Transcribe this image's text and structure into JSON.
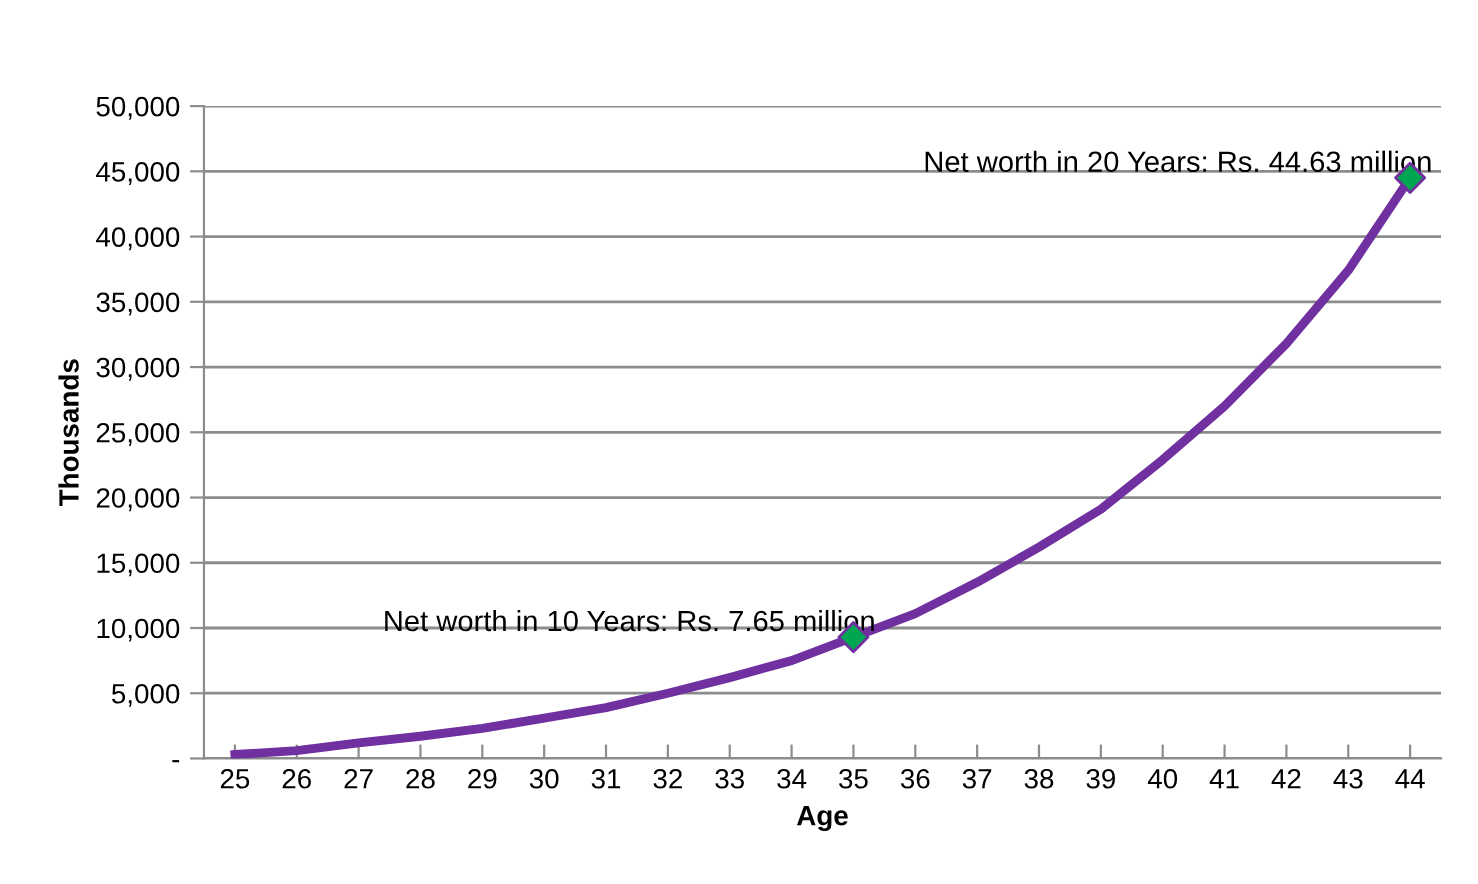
{
  "chart_data": {
    "type": "line",
    "xlabel": "Age",
    "ylabel": "Thousands",
    "categories": [
      "25",
      "26",
      "27",
      "28",
      "29",
      "30",
      "31",
      "32",
      "33",
      "34",
      "35",
      "36",
      "37",
      "38",
      "39",
      "40",
      "41",
      "42",
      "43",
      "44"
    ],
    "series": [
      {
        "color": "#7030a0",
        "marker": "none",
        "values": [
          300,
          600,
          1200,
          1700,
          2300,
          3100,
          3900,
          5000,
          6200,
          7500,
          9300,
          11100,
          13500,
          16200,
          19100,
          22900,
          27000,
          31800,
          37400,
          44500
        ]
      },
      {
        "type": "scatter",
        "color": "#00a651",
        "marker": "diamond",
        "x": [
          "35",
          "44"
        ],
        "values": [
          9300,
          44500
        ]
      }
    ],
    "ylim": [
      0,
      50000
    ],
    "yticks": [
      {
        "value": 0,
        "label": "-"
      },
      {
        "value": 5000,
        "label": "5,000"
      },
      {
        "value": 10000,
        "label": "10,000"
      },
      {
        "value": 15000,
        "label": "15,000"
      },
      {
        "value": 20000,
        "label": "20,000"
      },
      {
        "value": 25000,
        "label": "25,000"
      },
      {
        "value": 30000,
        "label": "30,000"
      },
      {
        "value": 35000,
        "label": "35,000"
      },
      {
        "value": 40000,
        "label": "40,000"
      },
      {
        "value": 45000,
        "label": "45,000"
      },
      {
        "value": 50000,
        "label": "50,000"
      }
    ],
    "grid": "y",
    "annotations": [
      {
        "text": "Net worth in 10 Years: Rs. 7.65 million",
        "x": "35",
        "y": 9300
      },
      {
        "text": "Net worth in 20 Years: Rs. 44.63 million",
        "x": "44",
        "y": 44500
      }
    ]
  }
}
